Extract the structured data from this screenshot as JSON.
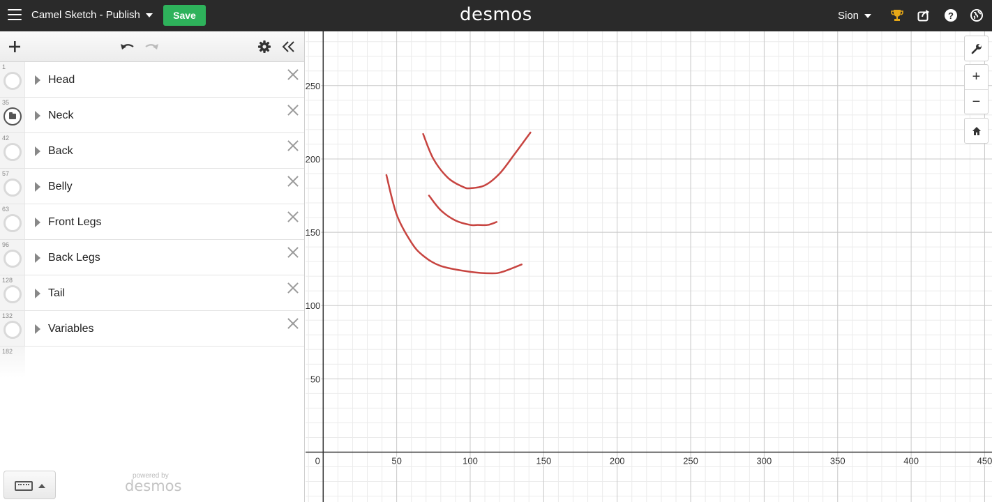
{
  "header": {
    "title": "Camel Sketch - Publish",
    "save_label": "Save",
    "logo": "desmos",
    "user": "Sion"
  },
  "expressions": [
    {
      "index": "1",
      "label": "Head",
      "folder": false
    },
    {
      "index": "35",
      "label": "Neck",
      "folder": true
    },
    {
      "index": "42",
      "label": "Back",
      "folder": false
    },
    {
      "index": "57",
      "label": "Belly",
      "folder": false
    },
    {
      "index": "63",
      "label": "Front Legs",
      "folder": false
    },
    {
      "index": "96",
      "label": "Back Legs",
      "folder": false
    },
    {
      "index": "128",
      "label": "Tail",
      "folder": false
    },
    {
      "index": "132",
      "label": "Variables",
      "folder": false
    }
  ],
  "next_index": "182",
  "footer": {
    "powered_by": "powered by",
    "logo": "desmos"
  },
  "graph": {
    "x_ticks": [
      "0",
      "50",
      "100",
      "150",
      "200",
      "250",
      "300",
      "350",
      "400",
      "450"
    ],
    "y_ticks": [
      "50",
      "100",
      "150",
      "200",
      "250"
    ],
    "curve_color": "#c74440",
    "zoom_in": "+",
    "zoom_out": "−"
  },
  "chart_data": {
    "type": "line",
    "xlim": [
      -12,
      455
    ],
    "ylim": [
      -34,
      287
    ],
    "grid": true,
    "series": [
      {
        "x": [
          68,
          75,
          85,
          95,
          100,
          110,
          120,
          130,
          141
        ],
        "y": [
          217,
          200,
          187,
          181,
          180,
          182,
          190,
          203,
          218
        ]
      },
      {
        "x": [
          72,
          80,
          90,
          100,
          105,
          112,
          118
        ],
        "y": [
          175,
          165,
          158,
          155,
          155,
          155,
          157
        ]
      },
      {
        "x": [
          43,
          50,
          60,
          68,
          80,
          100,
          115,
          122,
          135
        ],
        "y": [
          189,
          162,
          143,
          134,
          127,
          123,
          122,
          123,
          128
        ]
      }
    ]
  }
}
